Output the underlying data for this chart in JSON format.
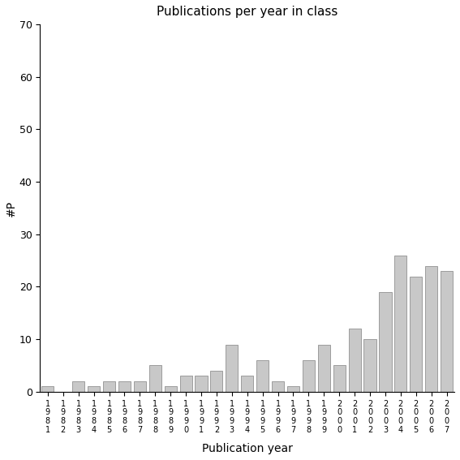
{
  "years": [
    "1981",
    "1982",
    "1983",
    "1984",
    "1985",
    "1986",
    "1987",
    "1988",
    "1989",
    "1990",
    "1991",
    "1992",
    "1993",
    "1994",
    "1995",
    "1996",
    "1997",
    "1998",
    "1999",
    "2000",
    "2001",
    "2002",
    "2003",
    "2004",
    "2005",
    "2006",
    "2007"
  ],
  "values": [
    1,
    0,
    2,
    1,
    2,
    2,
    2,
    5,
    1,
    3,
    3,
    4,
    9,
    3,
    6,
    2,
    1,
    6,
    9,
    5,
    12,
    10,
    19,
    26,
    22,
    24,
    23
  ],
  "title": "Publications per year in class",
  "xlabel": "Publication year",
  "ylabel": "#P",
  "ylim": [
    0,
    70
  ],
  "yticks": [
    0,
    10,
    20,
    30,
    40,
    50,
    60,
    70
  ],
  "bar_color": "#c8c8c8",
  "bar_edge_color": "#808080"
}
